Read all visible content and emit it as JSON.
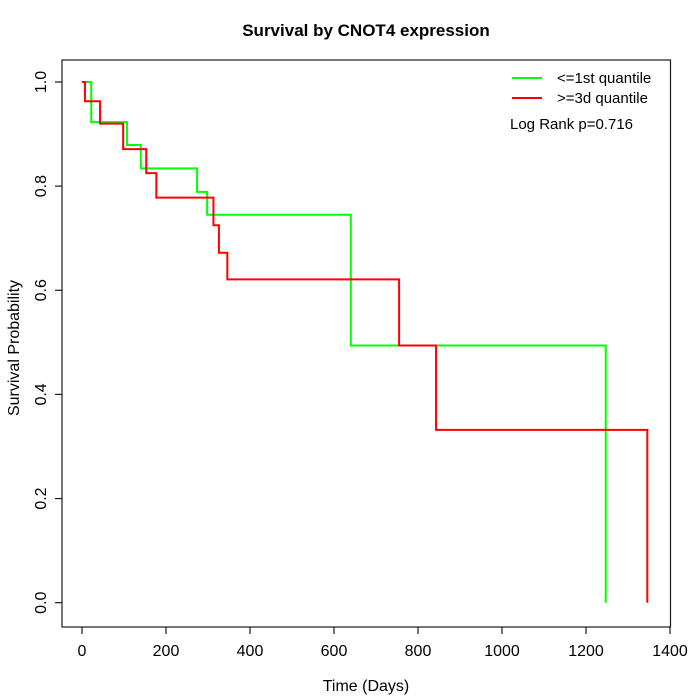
{
  "title": "Survival by CNOT4 expression",
  "axes": {
    "x": {
      "label": "Time (Days)",
      "ticks": [
        0,
        200,
        400,
        600,
        800,
        1000,
        1200,
        1400
      ],
      "range": [
        0,
        1400
      ]
    },
    "y": {
      "label": "Survival Probability",
      "ticks": [
        "0.0",
        "0.2",
        "0.4",
        "0.6",
        "0.8",
        "1.0"
      ],
      "range": [
        0.0,
        1.0
      ]
    }
  },
  "legend": {
    "items": [
      {
        "label": "<=1st quantile",
        "color": "#00ff00"
      },
      {
        "label": ">=3d quantile",
        "color": "#ff0000"
      }
    ],
    "note": "Log Rank p=0.716"
  },
  "colors": {
    "background": "#ffffff",
    "axis": "#1a1a1a",
    "text": "#000000",
    "green_series": "#00ff00",
    "red_series": "#ff0000"
  },
  "chart_data": {
    "type": "line",
    "subtype": "kaplan-meier-step",
    "title": "Survival by CNOT4 expression",
    "xlabel": "Time (Days)",
    "ylabel": "Survival Probability",
    "xlim": [
      0,
      1400
    ],
    "ylim": [
      0.0,
      1.0
    ],
    "grid": false,
    "legend_position": "top-right",
    "annotation": "Log Rank p=0.716",
    "series": [
      {
        "name": "<=1st quantile",
        "color": "#00ff00",
        "points": [
          [
            0,
            1.0
          ],
          [
            22,
            0.923
          ],
          [
            107,
            0.879
          ],
          [
            140,
            0.834
          ],
          [
            274,
            0.789
          ],
          [
            298,
            0.745
          ],
          [
            640,
            0.494
          ],
          [
            1247,
            0.0
          ]
        ]
      },
      {
        "name": ">=3d quantile",
        "color": "#ff0000",
        "points": [
          [
            0,
            1.0
          ],
          [
            7,
            0.963
          ],
          [
            43,
            0.92
          ],
          [
            98,
            0.871
          ],
          [
            153,
            0.825
          ],
          [
            177,
            0.778
          ],
          [
            313,
            0.725
          ],
          [
            326,
            0.672
          ],
          [
            346,
            0.621
          ],
          [
            755,
            0.494
          ],
          [
            843,
            0.332
          ],
          [
            1346,
            0.0
          ]
        ]
      }
    ]
  }
}
